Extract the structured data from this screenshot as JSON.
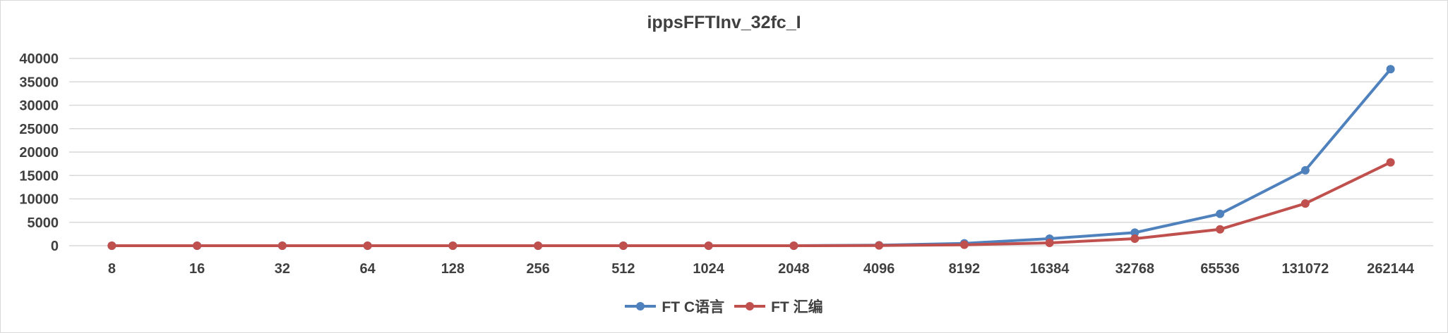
{
  "chart_data": {
    "type": "line",
    "title": "ippsFFTInv_32fc_I",
    "categories": [
      "8",
      "16",
      "32",
      "64",
      "128",
      "256",
      "512",
      "1024",
      "2048",
      "4096",
      "8192",
      "16384",
      "32768",
      "65536",
      "131072",
      "262144"
    ],
    "y_ticks": [
      "0",
      "5000",
      "10000",
      "15000",
      "20000",
      "25000",
      "30000",
      "35000",
      "40000"
    ],
    "ylim": [
      0,
      40000
    ],
    "grid": true,
    "legend_position": "bottom",
    "series": [
      {
        "name": "FT C语言",
        "color": "#4f81bd",
        "values": [
          0,
          0,
          0,
          0,
          0,
          0,
          0,
          0,
          0,
          100,
          500,
          1500,
          2800,
          6800,
          16100,
          37700
        ]
      },
      {
        "name": "FT 汇编",
        "color": "#c0504d",
        "values": [
          0,
          0,
          0,
          0,
          0,
          0,
          0,
          0,
          0,
          50,
          200,
          600,
          1500,
          3500,
          9000,
          17800
        ]
      }
    ]
  }
}
